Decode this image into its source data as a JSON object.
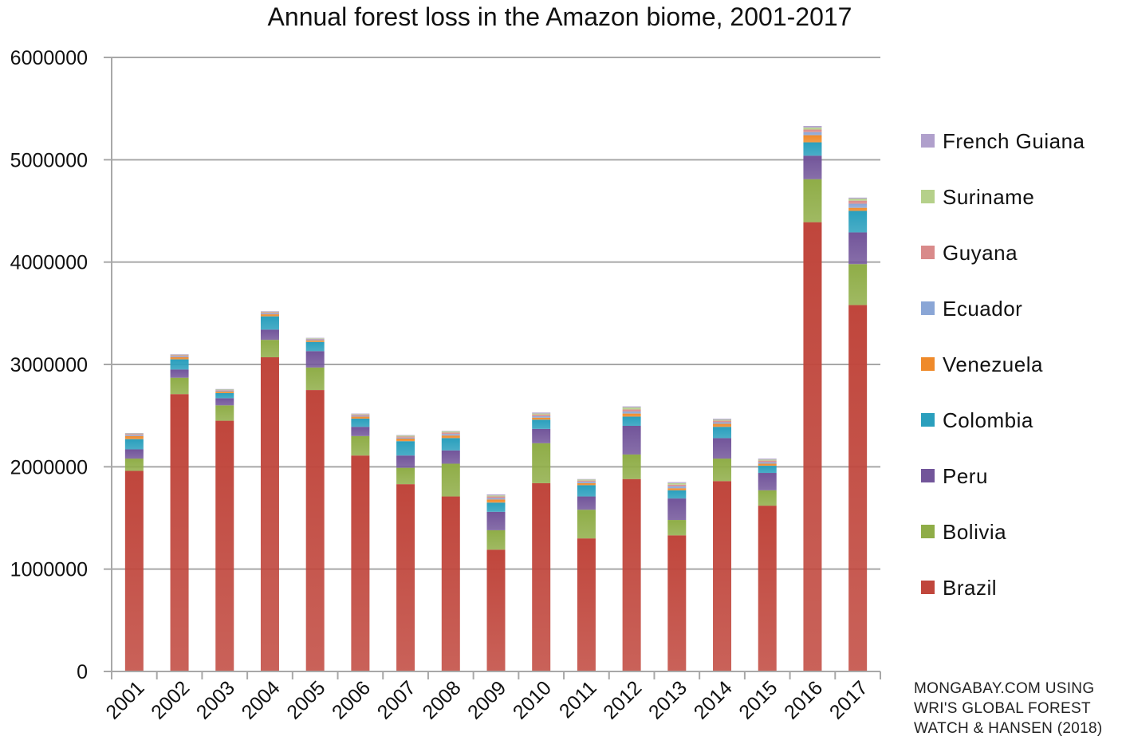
{
  "chart_data": {
    "type": "bar",
    "stacked": true,
    "title": "Annual forest loss in the Amazon biome, 2001-2017",
    "xlabel": "",
    "ylabel": "",
    "ylim": [
      0,
      6000000
    ],
    "yticks": [
      "0",
      "1000000",
      "2000000",
      "3000000",
      "4000000",
      "5000000",
      "6000000"
    ],
    "grid": true,
    "legend_position": "right",
    "categories": [
      "2001",
      "2002",
      "2003",
      "2004",
      "2005",
      "2006",
      "2007",
      "2008",
      "2009",
      "2010",
      "2011",
      "2012",
      "2013",
      "2014",
      "2015",
      "2016",
      "2017"
    ],
    "series": [
      {
        "name": "Brazil",
        "color": "#c0463c",
        "values": [
          1960000,
          2710000,
          2450000,
          3070000,
          2750000,
          2110000,
          1830000,
          1710000,
          1190000,
          1840000,
          1300000,
          1880000,
          1330000,
          1860000,
          1620000,
          4390000,
          3580000
        ]
      },
      {
        "name": "Bolivia",
        "color": "#8fad47",
        "values": [
          120000,
          160000,
          150000,
          170000,
          220000,
          190000,
          160000,
          320000,
          190000,
          390000,
          280000,
          240000,
          150000,
          220000,
          150000,
          420000,
          400000
        ]
      },
      {
        "name": "Peru",
        "color": "#72559a",
        "values": [
          90000,
          80000,
          70000,
          100000,
          160000,
          90000,
          120000,
          130000,
          180000,
          140000,
          130000,
          280000,
          210000,
          200000,
          170000,
          230000,
          310000
        ]
      },
      {
        "name": "Colombia",
        "color": "#2a9fbd",
        "values": [
          100000,
          100000,
          50000,
          130000,
          90000,
          80000,
          140000,
          120000,
          90000,
          90000,
          110000,
          90000,
          80000,
          110000,
          70000,
          130000,
          210000
        ]
      },
      {
        "name": "Venezuela",
        "color": "#ef8a2a",
        "values": [
          30000,
          20000,
          15000,
          20000,
          15000,
          20000,
          25000,
          25000,
          30000,
          20000,
          20000,
          30000,
          20000,
          30000,
          20000,
          70000,
          30000
        ]
      },
      {
        "name": "Ecuador",
        "color": "#8aa6d6",
        "values": [
          10000,
          10000,
          10000,
          10000,
          10000,
          10000,
          10000,
          15000,
          15000,
          15000,
          15000,
          20000,
          20000,
          15000,
          15000,
          30000,
          40000
        ]
      },
      {
        "name": "Guyana",
        "color": "#d98a8a",
        "values": [
          10000,
          10000,
          5000,
          10000,
          5000,
          10000,
          10000,
          15000,
          15000,
          15000,
          10000,
          20000,
          15000,
          15000,
          15000,
          25000,
          30000
        ]
      },
      {
        "name": "Suriname",
        "color": "#b5d08a",
        "values": [
          5000,
          5000,
          5000,
          5000,
          5000,
          5000,
          10000,
          10000,
          10000,
          10000,
          10000,
          20000,
          15000,
          10000,
          10000,
          20000,
          20000
        ]
      },
      {
        "name": "French Guiana",
        "color": "#b0a0cc",
        "values": [
          5000,
          5000,
          5000,
          5000,
          5000,
          5000,
          5000,
          5000,
          10000,
          10000,
          5000,
          10000,
          10000,
          10000,
          10000,
          15000,
          10000
        ]
      }
    ]
  },
  "source_lines": [
    "MONGABAY.COM USING",
    "WRI'S GLOBAL FOREST",
    "WATCH & HANSEN (2018)"
  ]
}
